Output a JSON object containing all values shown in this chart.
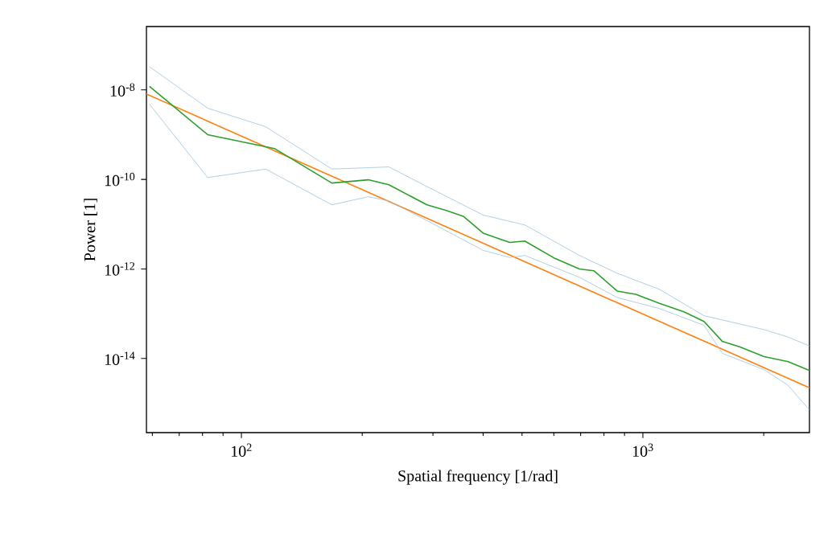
{
  "chart_data": {
    "type": "line",
    "xlabel": "Spatial frequency [1/rad]",
    "ylabel": "Power [1]",
    "log": "xy",
    "xlim": [
      58,
      2600
    ],
    "ylim": [
      2.2e-16,
      2.6e-07
    ],
    "xticks": [
      {
        "value": 60,
        "label": null
      },
      {
        "value": 70,
        "label": null
      },
      {
        "value": 80,
        "label": null
      },
      {
        "value": 90,
        "label": null
      },
      {
        "value": 100,
        "label": "10$^{2}$"
      },
      {
        "value": 200,
        "label": null
      },
      {
        "value": 300,
        "label": null
      },
      {
        "value": 400,
        "label": null
      },
      {
        "value": 500,
        "label": null
      },
      {
        "value": 600,
        "label": null
      },
      {
        "value": 700,
        "label": null
      },
      {
        "value": 800,
        "label": null
      },
      {
        "value": 900,
        "label": null
      },
      {
        "value": 1000,
        "label": "10$^{3}$"
      },
      {
        "value": 2000,
        "label": null
      }
    ],
    "yticks": [
      {
        "value": 1e-14,
        "label": "10$^{-14}$"
      },
      {
        "value": 1e-12,
        "label": "10$^{-12}$"
      },
      {
        "value": 1e-10,
        "label": "10$^{-10}$"
      },
      {
        "value": 1e-08,
        "label": "10$^{-8}$"
      }
    ],
    "series": [
      {
        "color": "#ff7f0e",
        "x": [
          58,
          2600
        ],
        "values": [
          8.1e-09,
          2.2e-15
        ]
      },
      {
        "color": "#9dc1e0",
        "x": [
          59,
          82.4,
          115,
          168,
          233,
          290,
          400,
          508,
          695,
          863,
          1100,
          1420,
          2005,
          2301,
          2600
        ],
        "values": [
          3.3e-08,
          3.9e-09,
          1.5e-09,
          1.7e-10,
          1.9e-10,
          6.9e-11,
          1.6e-11,
          9.6e-12,
          2e-12,
          8e-13,
          3.5e-13,
          9e-14,
          4.4e-14,
          3e-14,
          1.9e-14
        ]
      },
      {
        "color": "#9dc1e0",
        "x": [
          59,
          82.4,
          115,
          168,
          207,
          233,
          290,
          400,
          466,
          508,
          695,
          863,
          1100,
          1420,
          1578,
          2005,
          2301,
          2600
        ],
        "values": [
          4.8e-09,
          1.1e-10,
          1.7e-10,
          2.7e-11,
          4.1e-11,
          3.3e-11,
          1.2e-11,
          2.6e-12,
          1.8e-12,
          2e-12,
          6.5e-13,
          2.3e-13,
          1.3e-13,
          5.5e-14,
          1.3e-14,
          5.6e-15,
          2.5e-15,
          7.1e-16
        ]
      },
      {
        "color": "#2ca02c",
        "x": [
          59,
          82.4,
          120.8,
          168,
          207,
          233,
          290,
          325,
          357,
          400,
          466,
          508,
          605,
          695,
          755,
          863,
          960,
          1100,
          1265,
          1420,
          1578,
          1746,
          2005,
          2301,
          2600
        ],
        "values": [
          1.2e-08,
          1e-09,
          4.9e-10,
          8.3e-11,
          9.8e-11,
          7.6e-11,
          2.7e-11,
          2e-11,
          1.5e-11,
          6.3e-12,
          3.9e-12,
          4.2e-12,
          1.7e-12,
          1e-12,
          9.1e-13,
          3.2e-13,
          2.7e-13,
          1.7e-13,
          1.1e-13,
          6.7e-14,
          2.4e-14,
          1.8e-14,
          1.1e-14,
          8.5e-15,
          5.4e-15
        ]
      }
    ]
  }
}
